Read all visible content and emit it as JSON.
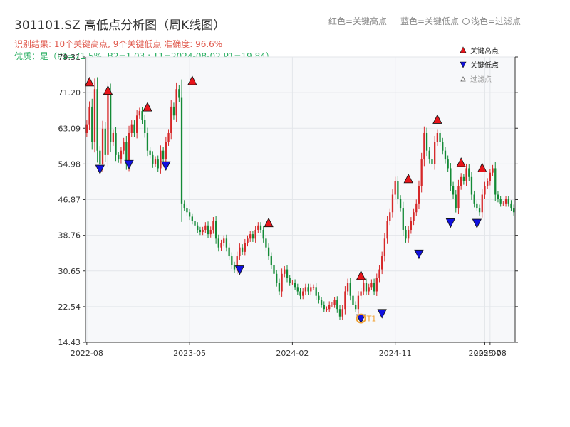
{
  "header": {
    "title": "301101.SZ 高低点分析图（周K线图）",
    "legend_high": "红色=关键高点",
    "legend_low": "蓝色=关键低点",
    "legend_filtered": "浅色=过滤点",
    "result_line": "识别结果: 10个关键高点, 9个关键低点  准确度: 96.6%",
    "quality_line": "优质：是（P1=71.5%, B2=1.03 ; T1=2024-08-02 P1=19.84）"
  },
  "chart_data": {
    "type": "candlestick",
    "y_ticks": [
      "14.43",
      "22.54",
      "30.65",
      "38.76",
      "46.87",
      "54.98",
      "63.09",
      "71.20",
      "79.31"
    ],
    "ylim": [
      14.43,
      79.31
    ],
    "x_ticks": [
      {
        "label": "2022-08",
        "index": 0
      },
      {
        "label": "2023-05",
        "index": 39
      },
      {
        "label": "2024-02",
        "index": 78
      },
      {
        "label": "2024-11",
        "index": 117
      },
      {
        "label": "2025-07",
        "index": 151
      },
      {
        "label": "2025-08",
        "index": 153
      }
    ],
    "closes": [
      64,
      68,
      60,
      72,
      58,
      55,
      63,
      57,
      71,
      60,
      62,
      57,
      56,
      58,
      60,
      55,
      62,
      64,
      62,
      66,
      67,
      65,
      62,
      58,
      57,
      55,
      56,
      54,
      58,
      56,
      60,
      62,
      68,
      66,
      72,
      70,
      46,
      45,
      44,
      43,
      42,
      41,
      40,
      39.5,
      40,
      41,
      39,
      40,
      42,
      38,
      36,
      37,
      38,
      36,
      34,
      32,
      31,
      34,
      36,
      35,
      37,
      38,
      39,
      38,
      40,
      41,
      40,
      38,
      36,
      34,
      32,
      30,
      28,
      26,
      30,
      31,
      29,
      28,
      28,
      27,
      26,
      25,
      26,
      27,
      26,
      27,
      27,
      25,
      24,
      23,
      22,
      22,
      23,
      23,
      24,
      22,
      20.3,
      22,
      26,
      28,
      25,
      23,
      22,
      25,
      26,
      28,
      26,
      27,
      28,
      26,
      29,
      31,
      34,
      38,
      42,
      44,
      48,
      51,
      47,
      45,
      40,
      38,
      40,
      42,
      44,
      46,
      50,
      56,
      62,
      58,
      56,
      55,
      60,
      62,
      60,
      58,
      56,
      54,
      50,
      48,
      45,
      50,
      52,
      51,
      54,
      52,
      48,
      46,
      45,
      44,
      48,
      50,
      51,
      53,
      54,
      48,
      47,
      46,
      46,
      47,
      46,
      45,
      44
    ],
    "key_highs": [
      {
        "index": 1,
        "value": 73.5
      },
      {
        "index": 8,
        "value": 71.6
      },
      {
        "index": 23,
        "value": 67.8
      },
      {
        "index": 40,
        "value": 73.8
      },
      {
        "index": 69,
        "value": 41.5
      },
      {
        "index": 104,
        "value": 29.5
      },
      {
        "index": 122,
        "value": 51.5
      },
      {
        "index": 133,
        "value": 65.0
      },
      {
        "index": 142,
        "value": 55.2
      },
      {
        "index": 150,
        "value": 54.0
      }
    ],
    "key_lows": [
      {
        "index": 5,
        "value": 53.9
      },
      {
        "index": 16,
        "value": 55.0
      },
      {
        "index": 30,
        "value": 54.7
      },
      {
        "index": 58,
        "value": 31.0
      },
      {
        "index": 104,
        "value": 19.9
      },
      {
        "index": 112,
        "value": 21.1
      },
      {
        "index": 126,
        "value": 34.6
      },
      {
        "index": 138,
        "value": 41.7
      },
      {
        "index": 148,
        "value": 41.6
      }
    ],
    "marker_label": "T1",
    "marker": {
      "index": 104,
      "value": 19.84
    },
    "legend": {
      "high": "关键高点",
      "low": "关键低点",
      "filtered": "过滤点"
    },
    "colors": {
      "up": "#d62728",
      "down": "#138a36",
      "high_marker": "#e8141a",
      "low_marker": "#1010e0",
      "t1_marker": "#f0a030"
    },
    "grid": true
  }
}
